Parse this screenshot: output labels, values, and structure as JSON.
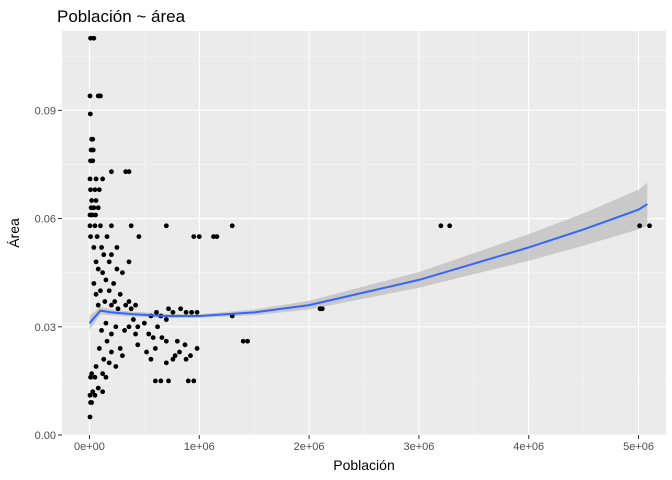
{
  "chart_data": {
    "type": "scatter",
    "title": "Población ~ área",
    "xlabel": "Población",
    "ylabel": "Área",
    "xlim": [
      -250000,
      5250000
    ],
    "ylim": [
      0,
      0.112
    ],
    "x_ticks": [
      0,
      1000000,
      2000000,
      3000000,
      4000000,
      5000000
    ],
    "x_tick_labels": [
      "0e+00",
      "1e+06",
      "2e+06",
      "3e+06",
      "4e+06",
      "5e+06"
    ],
    "y_ticks": [
      0,
      0.03,
      0.06,
      0.09
    ],
    "y_tick_labels": [
      "0.00",
      "0.03",
      "0.06",
      "0.09"
    ],
    "grid": true,
    "colors": {
      "panel_bg": "#ebebeb",
      "grid_major": "#ffffff",
      "points": "#000000",
      "smooth_line": "#3366ff",
      "confidence_band": "#bdbdbd"
    },
    "series": [
      {
        "kind": "points",
        "points": [
          [
            10000,
            0.11
          ],
          [
            40000,
            0.11
          ],
          [
            5000,
            0.094
          ],
          [
            80000,
            0.094
          ],
          [
            100000,
            0.094
          ],
          [
            8000,
            0.089
          ],
          [
            20000,
            0.082
          ],
          [
            30000,
            0.082
          ],
          [
            15000,
            0.079
          ],
          [
            35000,
            0.079
          ],
          [
            10000,
            0.076
          ],
          [
            30000,
            0.076
          ],
          [
            200000,
            0.073
          ],
          [
            330000,
            0.073
          ],
          [
            360000,
            0.073
          ],
          [
            5000,
            0.071
          ],
          [
            60000,
            0.071
          ],
          [
            120000,
            0.071
          ],
          [
            10000,
            0.068
          ],
          [
            50000,
            0.068
          ],
          [
            90000,
            0.068
          ],
          [
            20000,
            0.065
          ],
          [
            60000,
            0.065
          ],
          [
            15000,
            0.063
          ],
          [
            40000,
            0.063
          ],
          [
            80000,
            0.063
          ],
          [
            5000,
            0.061
          ],
          [
            25000,
            0.061
          ],
          [
            55000,
            0.061
          ],
          [
            5000,
            0.058
          ],
          [
            50000,
            0.058
          ],
          [
            100000,
            0.058
          ],
          [
            200000,
            0.058
          ],
          [
            380000,
            0.058
          ],
          [
            700000,
            0.058
          ],
          [
            1300000,
            0.058
          ],
          [
            3200000,
            0.058
          ],
          [
            3280000,
            0.058
          ],
          [
            5010000,
            0.058
          ],
          [
            5100000,
            0.058
          ],
          [
            10000,
            0.055
          ],
          [
            70000,
            0.055
          ],
          [
            160000,
            0.055
          ],
          [
            450000,
            0.055
          ],
          [
            950000,
            0.055
          ],
          [
            1000000,
            0.055
          ],
          [
            1130000,
            0.055
          ],
          [
            1160000,
            0.055
          ],
          [
            40000,
            0.052
          ],
          [
            110000,
            0.052
          ],
          [
            250000,
            0.052
          ],
          [
            130000,
            0.05
          ],
          [
            200000,
            0.05
          ],
          [
            60000,
            0.048
          ],
          [
            180000,
            0.048
          ],
          [
            360000,
            0.048
          ],
          [
            80000,
            0.046
          ],
          [
            250000,
            0.046
          ],
          [
            120000,
            0.045
          ],
          [
            300000,
            0.045
          ],
          [
            150000,
            0.043
          ],
          [
            40000,
            0.042
          ],
          [
            220000,
            0.042
          ],
          [
            100000,
            0.04
          ],
          [
            180000,
            0.04
          ],
          [
            60000,
            0.039
          ],
          [
            280000,
            0.039
          ],
          [
            140000,
            0.037
          ],
          [
            230000,
            0.037
          ],
          [
            360000,
            0.037
          ],
          [
            80000,
            0.036
          ],
          [
            200000,
            0.036
          ],
          [
            330000,
            0.036
          ],
          [
            420000,
            0.036
          ],
          [
            260000,
            0.035
          ],
          [
            380000,
            0.035
          ],
          [
            720000,
            0.035
          ],
          [
            830000,
            0.035
          ],
          [
            2100000,
            0.035
          ],
          [
            2120000,
            0.035
          ],
          [
            610000,
            0.034
          ],
          [
            760000,
            0.034
          ],
          [
            880000,
            0.034
          ],
          [
            930000,
            0.034
          ],
          [
            980000,
            0.034
          ],
          [
            560000,
            0.033
          ],
          [
            650000,
            0.033
          ],
          [
            1300000,
            0.033
          ],
          [
            400000,
            0.032
          ],
          [
            700000,
            0.032
          ],
          [
            150000,
            0.031
          ],
          [
            500000,
            0.031
          ],
          [
            240000,
            0.03
          ],
          [
            360000,
            0.03
          ],
          [
            440000,
            0.03
          ],
          [
            620000,
            0.03
          ],
          [
            110000,
            0.029
          ],
          [
            320000,
            0.029
          ],
          [
            200000,
            0.028
          ],
          [
            420000,
            0.028
          ],
          [
            540000,
            0.028
          ],
          [
            580000,
            0.027
          ],
          [
            660000,
            0.027
          ],
          [
            160000,
            0.026
          ],
          [
            700000,
            0.026
          ],
          [
            800000,
            0.026
          ],
          [
            1400000,
            0.026
          ],
          [
            1440000,
            0.026
          ],
          [
            440000,
            0.025
          ],
          [
            870000,
            0.025
          ],
          [
            90000,
            0.024
          ],
          [
            280000,
            0.024
          ],
          [
            600000,
            0.024
          ],
          [
            980000,
            0.024
          ],
          [
            200000,
            0.023
          ],
          [
            520000,
            0.023
          ],
          [
            820000,
            0.023
          ],
          [
            300000,
            0.022
          ],
          [
            780000,
            0.022
          ],
          [
            920000,
            0.022
          ],
          [
            130000,
            0.021
          ],
          [
            560000,
            0.021
          ],
          [
            760000,
            0.021
          ],
          [
            880000,
            0.021
          ],
          [
            180000,
            0.02
          ],
          [
            700000,
            0.02
          ],
          [
            60000,
            0.019
          ],
          [
            240000,
            0.019
          ],
          [
            20000,
            0.017
          ],
          [
            120000,
            0.017
          ],
          [
            10000,
            0.016
          ],
          [
            50000,
            0.016
          ],
          [
            150000,
            0.016
          ],
          [
            600000,
            0.015
          ],
          [
            650000,
            0.015
          ],
          [
            720000,
            0.015
          ],
          [
            900000,
            0.015
          ],
          [
            950000,
            0.015
          ],
          [
            80000,
            0.013
          ],
          [
            30000,
            0.012
          ],
          [
            120000,
            0.012
          ],
          [
            5000,
            0.011
          ],
          [
            50000,
            0.011
          ],
          [
            10000,
            0.009
          ],
          [
            20000,
            0.009
          ],
          [
            5000,
            0.005
          ]
        ]
      },
      {
        "kind": "smooth",
        "x": [
          0,
          100000,
          200000,
          400000,
          700000,
          1000000,
          1500000,
          2000000,
          2500000,
          3000000,
          3500000,
          4000000,
          4500000,
          5000000,
          5080000
        ],
        "y": [
          0.031,
          0.0345,
          0.034,
          0.0335,
          0.033,
          0.033,
          0.034,
          0.036,
          0.0395,
          0.043,
          0.0475,
          0.052,
          0.057,
          0.0625,
          0.064
        ],
        "lower": [
          0.029,
          0.0335,
          0.0332,
          0.0328,
          0.0324,
          0.0325,
          0.0332,
          0.0348,
          0.0378,
          0.0408,
          0.0446,
          0.0483,
          0.0525,
          0.057,
          0.058
        ],
        "upper": [
          0.033,
          0.0355,
          0.0348,
          0.0342,
          0.0336,
          0.0335,
          0.0348,
          0.0372,
          0.0412,
          0.0452,
          0.0504,
          0.0557,
          0.0615,
          0.068,
          0.07
        ]
      }
    ]
  }
}
